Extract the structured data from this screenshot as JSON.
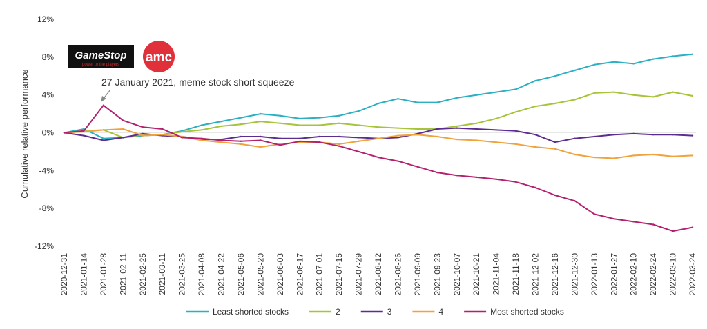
{
  "chart_data": {
    "type": "line",
    "title": "",
    "ylabel": "Cumulative relative performance",
    "xlabel": "",
    "ylim": [
      -12,
      12
    ],
    "ytick_values": [
      -12,
      -8,
      -4,
      0,
      4,
      8,
      12
    ],
    "ytick_labels": [
      "-12%",
      "-8%",
      "-4%",
      "0%",
      "4%",
      "8%",
      "12%"
    ],
    "x_ticks": [
      "2020-12-31",
      "2021-01-14",
      "2021-01-28",
      "2021-02-11",
      "2021-02-25",
      "2021-03-11",
      "2021-03-25",
      "2021-04-08",
      "2021-04-22",
      "2021-05-06",
      "2021-05-20",
      "2021-06-03",
      "2021-06-17",
      "2021-07-01",
      "2021-07-15",
      "2021-07-29",
      "2021-08-12",
      "2021-08-26",
      "2021-09-09",
      "2021-09-23",
      "2021-10-07",
      "2021-10-21",
      "2021-11-04",
      "2021-11-18",
      "2021-12-02",
      "2021-12-16",
      "2021-12-30",
      "2022-01-13",
      "2022-01-27",
      "2022-02-10",
      "2022-02-24",
      "2022-03-10",
      "2022-03-24"
    ],
    "grid": false,
    "legend_position": "bottom",
    "series": [
      {
        "name": "Least shorted stocks",
        "color": "#2bafc2",
        "values": [
          0,
          0.4,
          -0.6,
          -0.5,
          -0.3,
          -0.2,
          0.2,
          0.8,
          1.2,
          1.6,
          2.0,
          1.8,
          1.5,
          1.6,
          1.8,
          2.3,
          3.1,
          3.6,
          3.2,
          3.2,
          3.7,
          4.0,
          4.3,
          4.6,
          5.5,
          6.0,
          6.6,
          7.2,
          7.5,
          7.3,
          7.8,
          8.1,
          8.3
        ]
      },
      {
        "name": "2",
        "color": "#a6c43a",
        "values": [
          0,
          0.2,
          0.3,
          -0.5,
          -0.2,
          -0.2,
          0.1,
          0.3,
          0.7,
          0.9,
          1.2,
          1.0,
          0.8,
          0.8,
          1.0,
          0.8,
          0.6,
          0.5,
          0.4,
          0.4,
          0.7,
          1.0,
          1.5,
          2.2,
          2.8,
          3.1,
          3.5,
          4.2,
          4.3,
          4.0,
          3.8,
          4.3,
          3.9
        ]
      },
      {
        "name": "3",
        "color": "#5c2d91",
        "values": [
          0,
          -0.3,
          -0.8,
          -0.5,
          -0.1,
          -0.3,
          -0.4,
          -0.7,
          -0.7,
          -0.4,
          -0.4,
          -0.6,
          -0.6,
          -0.4,
          -0.4,
          -0.5,
          -0.6,
          -0.5,
          -0.1,
          0.4,
          0.5,
          0.4,
          0.3,
          0.2,
          -0.2,
          -1.0,
          -0.6,
          -0.4,
          -0.2,
          -0.1,
          -0.2,
          -0.2,
          -0.3
        ]
      },
      {
        "name": "4",
        "color": "#f0a23c",
        "values": [
          0,
          0.1,
          0.3,
          0.4,
          -0.3,
          -0.2,
          -0.4,
          -0.8,
          -1.0,
          -1.2,
          -1.5,
          -1.2,
          -1.0,
          -1.0,
          -1.2,
          -0.9,
          -0.6,
          -0.3,
          -0.2,
          -0.4,
          -0.7,
          -0.8,
          -1.0,
          -1.2,
          -1.5,
          -1.7,
          -2.3,
          -2.6,
          -2.7,
          -2.4,
          -2.3,
          -2.5,
          -2.4
        ]
      },
      {
        "name": "Most shorted stocks",
        "color": "#b3216e",
        "values": [
          0,
          0.2,
          2.9,
          1.3,
          0.6,
          0.4,
          -0.5,
          -0.6,
          -0.8,
          -0.9,
          -0.8,
          -1.3,
          -0.9,
          -1.0,
          -1.4,
          -2.0,
          -2.6,
          -3.0,
          -3.6,
          -4.2,
          -4.5,
          -4.7,
          -4.9,
          -5.2,
          -5.8,
          -6.6,
          -7.2,
          -8.6,
          -9.1,
          -9.4,
          -9.7,
          -10.4,
          -10.0
        ]
      }
    ],
    "annotation": "27 January 2021, meme stock short squeeze"
  },
  "logos": {
    "gamestop": {
      "name": "GameStop",
      "tagline": "power to the players",
      "icon": "gamestop-logo"
    },
    "amc": {
      "name": "amc",
      "icon": "amc-logo"
    }
  }
}
